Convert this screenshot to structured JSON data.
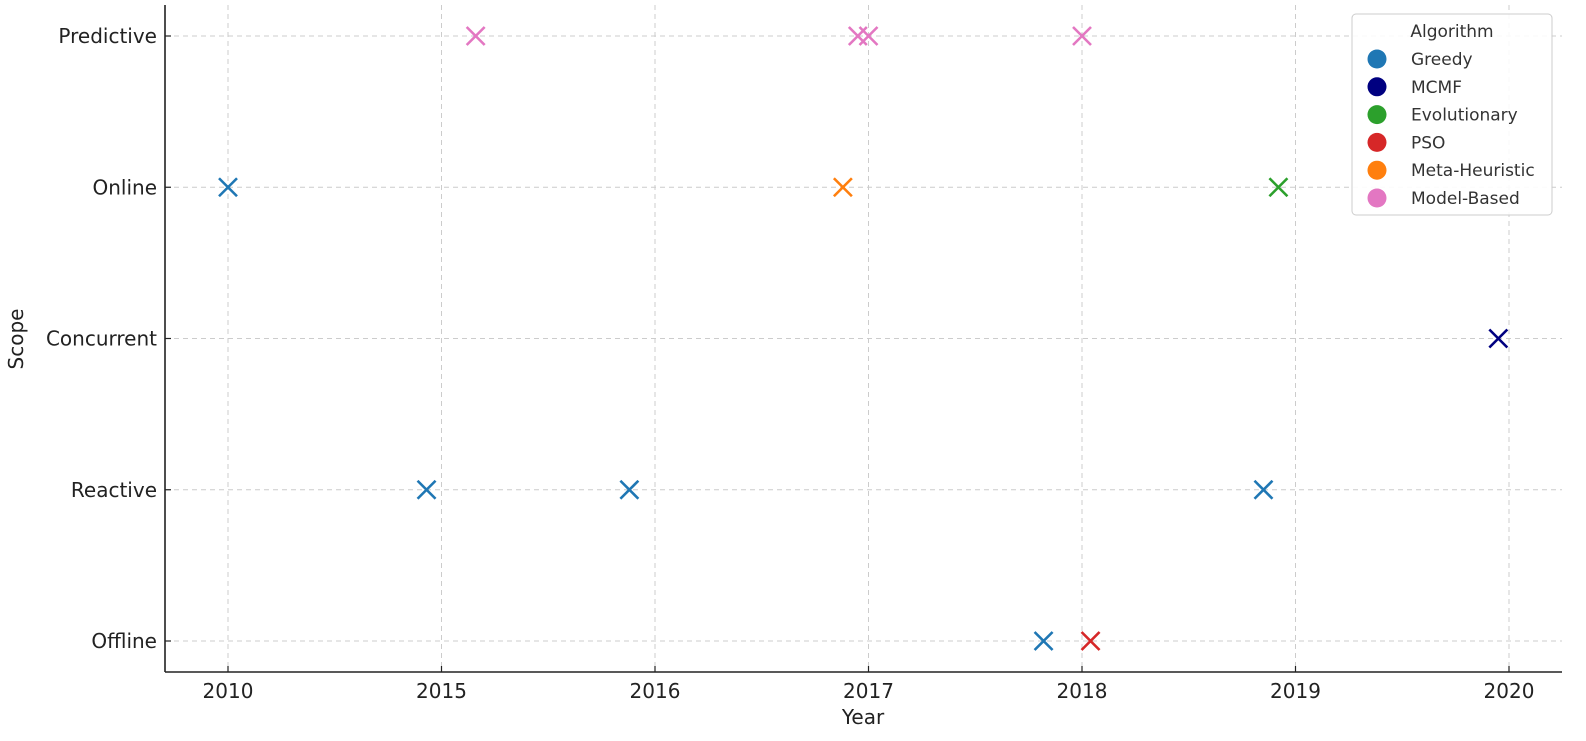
{
  "chart_data": {
    "type": "scatter",
    "title": "",
    "xlabel": "Year",
    "ylabel": "Scope",
    "x_tick_labels": [
      "2010",
      "2015",
      "2016",
      "2017",
      "2018",
      "2019",
      "2020"
    ],
    "y_categories": [
      "Offline",
      "Reactive",
      "Concurrent",
      "Online",
      "Predictive"
    ],
    "grid": true,
    "marker": "x",
    "legend": {
      "title": "Algorithm",
      "placement": "top-right",
      "entries": [
        {
          "name": "Greedy",
          "color": "#1f77b4"
        },
        {
          "name": "MCMF",
          "color": "#000080"
        },
        {
          "name": "Evolutionary",
          "color": "#2ca02c"
        },
        {
          "name": "PSO",
          "color": "#d62728"
        },
        {
          "name": "Meta-Heuristic",
          "color": "#ff7f0e"
        },
        {
          "name": "Model-Based",
          "color": "#e377c2"
        }
      ]
    },
    "points": [
      {
        "x": 0.0,
        "scope": "Online",
        "algorithm": "Greedy"
      },
      {
        "x": 0.93,
        "scope": "Reactive",
        "algorithm": "Greedy"
      },
      {
        "x": 1.16,
        "scope": "Predictive",
        "algorithm": "Model-Based"
      },
      {
        "x": 1.88,
        "scope": "Reactive",
        "algorithm": "Greedy"
      },
      {
        "x": 2.88,
        "scope": "Online",
        "algorithm": "Meta-Heuristic"
      },
      {
        "x": 2.95,
        "scope": "Predictive",
        "algorithm": "Model-Based"
      },
      {
        "x": 3.0,
        "scope": "Predictive",
        "algorithm": "Model-Based"
      },
      {
        "x": 3.82,
        "scope": "Offline",
        "algorithm": "Greedy"
      },
      {
        "x": 4.0,
        "scope": "Predictive",
        "algorithm": "Model-Based"
      },
      {
        "x": 4.04,
        "scope": "Offline",
        "algorithm": "PSO"
      },
      {
        "x": 4.85,
        "scope": "Reactive",
        "algorithm": "Greedy"
      },
      {
        "x": 4.92,
        "scope": "Online",
        "algorithm": "Evolutionary"
      },
      {
        "x": 5.95,
        "scope": "Concurrent",
        "algorithm": "MCMF"
      }
    ]
  }
}
